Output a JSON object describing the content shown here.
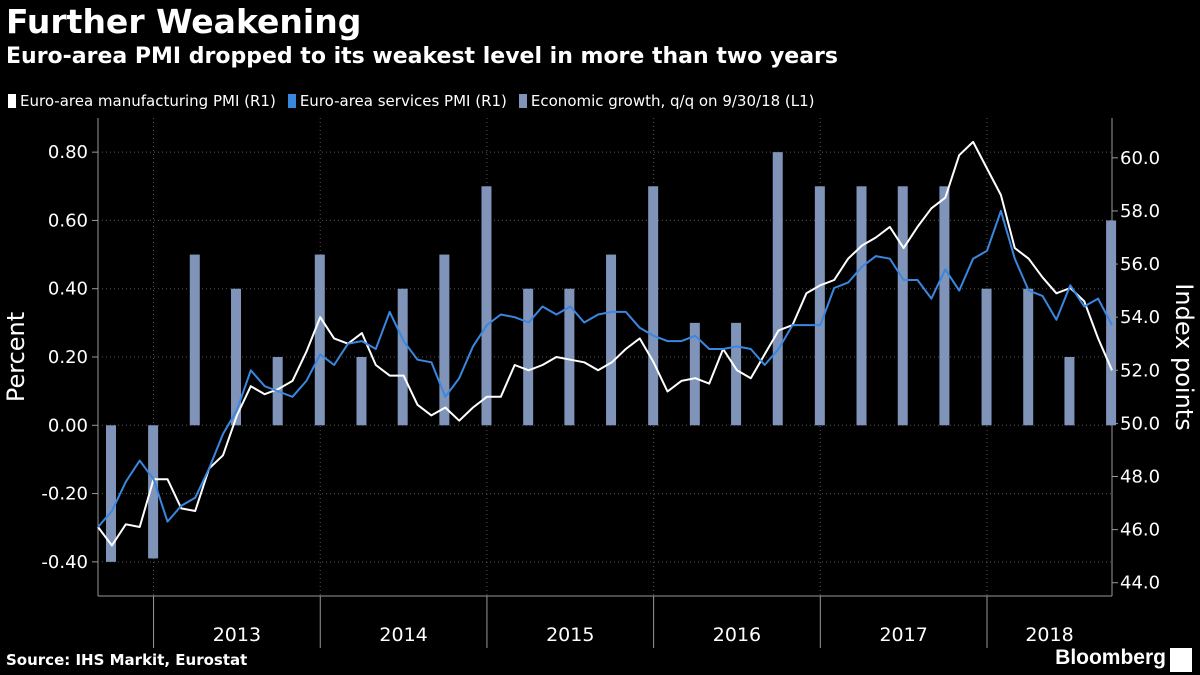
{
  "header": {
    "title": "Further Weakening",
    "subtitle": "Euro-area PMI dropped to its weakest level in more than two years"
  },
  "legend": [
    {
      "label": "Euro-area manufacturing PMI (R1)",
      "color": "#ffffff"
    },
    {
      "label": "Euro-area services PMI (R1)",
      "color": "#3a87e0"
    },
    {
      "label": "Economic growth, q/q on 9/30/18 (L1)",
      "color": "#7f94b8"
    }
  ],
  "footer": {
    "source": "Source: IHS Markit, Eurostat",
    "brand": "Bloomberg"
  },
  "chart_data": {
    "type": "bar",
    "left_axis": {
      "label": "Percent",
      "range": [
        -0.5,
        0.9
      ],
      "ticks": [
        -0.4,
        -0.2,
        0.0,
        0.2,
        0.4,
        0.6,
        0.8
      ],
      "tick_labels": [
        "-0.40",
        "-0.20",
        "0.00",
        "0.20",
        "0.40",
        "0.60",
        "0.80"
      ]
    },
    "right_axis": {
      "label": "Index points",
      "range": [
        43.5,
        61.5
      ],
      "ticks": [
        44,
        46,
        48,
        50,
        52,
        54,
        56,
        58,
        60
      ],
      "tick_labels": [
        "44.0",
        "46.0",
        "48.0",
        "50.0",
        "52.0",
        "54.0",
        "56.0",
        "58.0",
        "60.0"
      ]
    },
    "x_axis": {
      "start": "2012-09",
      "end": "2018-10",
      "year_labels": [
        "2013",
        "2014",
        "2015",
        "2016",
        "2017",
        "2018"
      ]
    },
    "grid": true,
    "series": [
      {
        "name": "Economic growth, q/q on 9/30/18 (L1)",
        "type": "bar",
        "axis": "left",
        "color": "#7f94b8",
        "x": [
          "2012-09-30",
          "2012-12-31",
          "2013-03-31",
          "2013-06-30",
          "2013-09-30",
          "2013-12-31",
          "2014-03-31",
          "2014-06-30",
          "2014-09-30",
          "2014-12-31",
          "2015-03-31",
          "2015-06-30",
          "2015-09-30",
          "2015-12-31",
          "2016-03-31",
          "2016-06-30",
          "2016-09-30",
          "2016-12-31",
          "2017-03-31",
          "2017-06-30",
          "2017-09-30",
          "2017-12-31",
          "2018-03-31",
          "2018-06-30",
          "2018-09-30"
        ],
        "values": [
          -0.4,
          -0.39,
          0.5,
          0.4,
          0.2,
          0.5,
          0.2,
          0.4,
          0.5,
          0.7,
          0.4,
          0.4,
          0.5,
          0.7,
          0.3,
          0.3,
          0.8,
          0.7,
          0.7,
          0.7,
          0.7,
          0.4,
          0.4,
          0.2,
          0.6
        ]
      },
      {
        "name": "Euro-area manufacturing PMI (R1)",
        "type": "line",
        "axis": "right",
        "color": "#ffffff",
        "x": [
          "2012-09",
          "2012-10",
          "2012-11",
          "2012-12",
          "2013-01",
          "2013-02",
          "2013-03",
          "2013-04",
          "2013-05",
          "2013-06",
          "2013-07",
          "2013-08",
          "2013-09",
          "2013-10",
          "2013-11",
          "2013-12",
          "2014-01",
          "2014-02",
          "2014-03",
          "2014-04",
          "2014-05",
          "2014-06",
          "2014-07",
          "2014-08",
          "2014-09",
          "2014-10",
          "2014-11",
          "2014-12",
          "2015-01",
          "2015-02",
          "2015-03",
          "2015-04",
          "2015-05",
          "2015-06",
          "2015-07",
          "2015-08",
          "2015-09",
          "2015-10",
          "2015-11",
          "2015-12",
          "2016-01",
          "2016-02",
          "2016-03",
          "2016-04",
          "2016-05",
          "2016-06",
          "2016-07",
          "2016-08",
          "2016-09",
          "2016-10",
          "2016-11",
          "2016-12",
          "2017-01",
          "2017-02",
          "2017-03",
          "2017-04",
          "2017-05",
          "2017-06",
          "2017-07",
          "2017-08",
          "2017-09",
          "2017-10",
          "2017-11",
          "2017-12",
          "2018-01",
          "2018-02",
          "2018-03",
          "2018-04",
          "2018-05",
          "2018-06",
          "2018-07",
          "2018-08",
          "2018-09",
          "2018-10"
        ],
        "values": [
          46.1,
          45.4,
          46.2,
          46.1,
          47.9,
          47.9,
          46.8,
          46.7,
          48.3,
          48.8,
          50.3,
          51.4,
          51.1,
          51.3,
          51.6,
          52.7,
          54.0,
          53.2,
          53.0,
          53.4,
          52.2,
          51.8,
          51.8,
          50.7,
          50.3,
          50.6,
          50.1,
          50.6,
          51.0,
          51.0,
          52.2,
          52.0,
          52.2,
          52.5,
          52.4,
          52.3,
          52.0,
          52.3,
          52.8,
          53.2,
          52.3,
          51.2,
          51.6,
          51.7,
          51.5,
          52.8,
          52.0,
          51.7,
          52.6,
          53.5,
          53.7,
          54.9,
          55.2,
          55.4,
          56.2,
          56.7,
          57.0,
          57.4,
          56.6,
          57.4,
          58.1,
          58.5,
          60.1,
          60.6,
          59.6,
          58.6,
          56.6,
          56.2,
          55.5,
          54.9,
          55.1,
          54.6,
          53.2,
          52.0
        ]
      },
      {
        "name": "Euro-area services PMI (R1)",
        "type": "line",
        "axis": "right",
        "color": "#3a87e0",
        "x": [
          "2012-09",
          "2012-10",
          "2012-11",
          "2012-12",
          "2013-01",
          "2013-02",
          "2013-03",
          "2013-04",
          "2013-05",
          "2013-06",
          "2013-07",
          "2013-08",
          "2013-09",
          "2013-10",
          "2013-11",
          "2013-12",
          "2014-01",
          "2014-02",
          "2014-03",
          "2014-04",
          "2014-05",
          "2014-06",
          "2014-07",
          "2014-08",
          "2014-09",
          "2014-10",
          "2014-11",
          "2014-12",
          "2015-01",
          "2015-02",
          "2015-03",
          "2015-04",
          "2015-05",
          "2015-06",
          "2015-07",
          "2015-08",
          "2015-09",
          "2015-10",
          "2015-11",
          "2015-12",
          "2016-01",
          "2016-02",
          "2016-03",
          "2016-04",
          "2016-05",
          "2016-06",
          "2016-07",
          "2016-08",
          "2016-09",
          "2016-10",
          "2016-11",
          "2016-12",
          "2017-01",
          "2017-02",
          "2017-03",
          "2017-04",
          "2017-05",
          "2017-06",
          "2017-07",
          "2017-08",
          "2017-09",
          "2017-10",
          "2017-11",
          "2017-12",
          "2018-01",
          "2018-02",
          "2018-03",
          "2018-04",
          "2018-05",
          "2018-06",
          "2018-07",
          "2018-08",
          "2018-09",
          "2018-10"
        ],
        "values": [
          46.1,
          46.7,
          47.8,
          48.6,
          47.9,
          46.3,
          46.9,
          47.2,
          48.3,
          49.6,
          50.5,
          52.0,
          51.4,
          51.2,
          51.0,
          51.6,
          52.6,
          52.2,
          53.0,
          53.1,
          52.8,
          54.2,
          53.1,
          52.4,
          52.3,
          51.0,
          51.7,
          52.9,
          53.7,
          54.1,
          54.0,
          53.8,
          54.4,
          54.1,
          54.4,
          53.8,
          54.1,
          54.2,
          54.2,
          53.6,
          53.3,
          53.1,
          53.1,
          53.3,
          52.8,
          52.8,
          52.9,
          52.8,
          52.2,
          52.8,
          53.7,
          53.7,
          53.7,
          55.1,
          55.3,
          55.9,
          56.3,
          56.2,
          55.4,
          55.4,
          54.7,
          55.8,
          55.0,
          56.2,
          56.5,
          58.0,
          56.2,
          55.0,
          54.8,
          53.9,
          55.2,
          54.4,
          54.7,
          53.7
        ]
      }
    ]
  }
}
